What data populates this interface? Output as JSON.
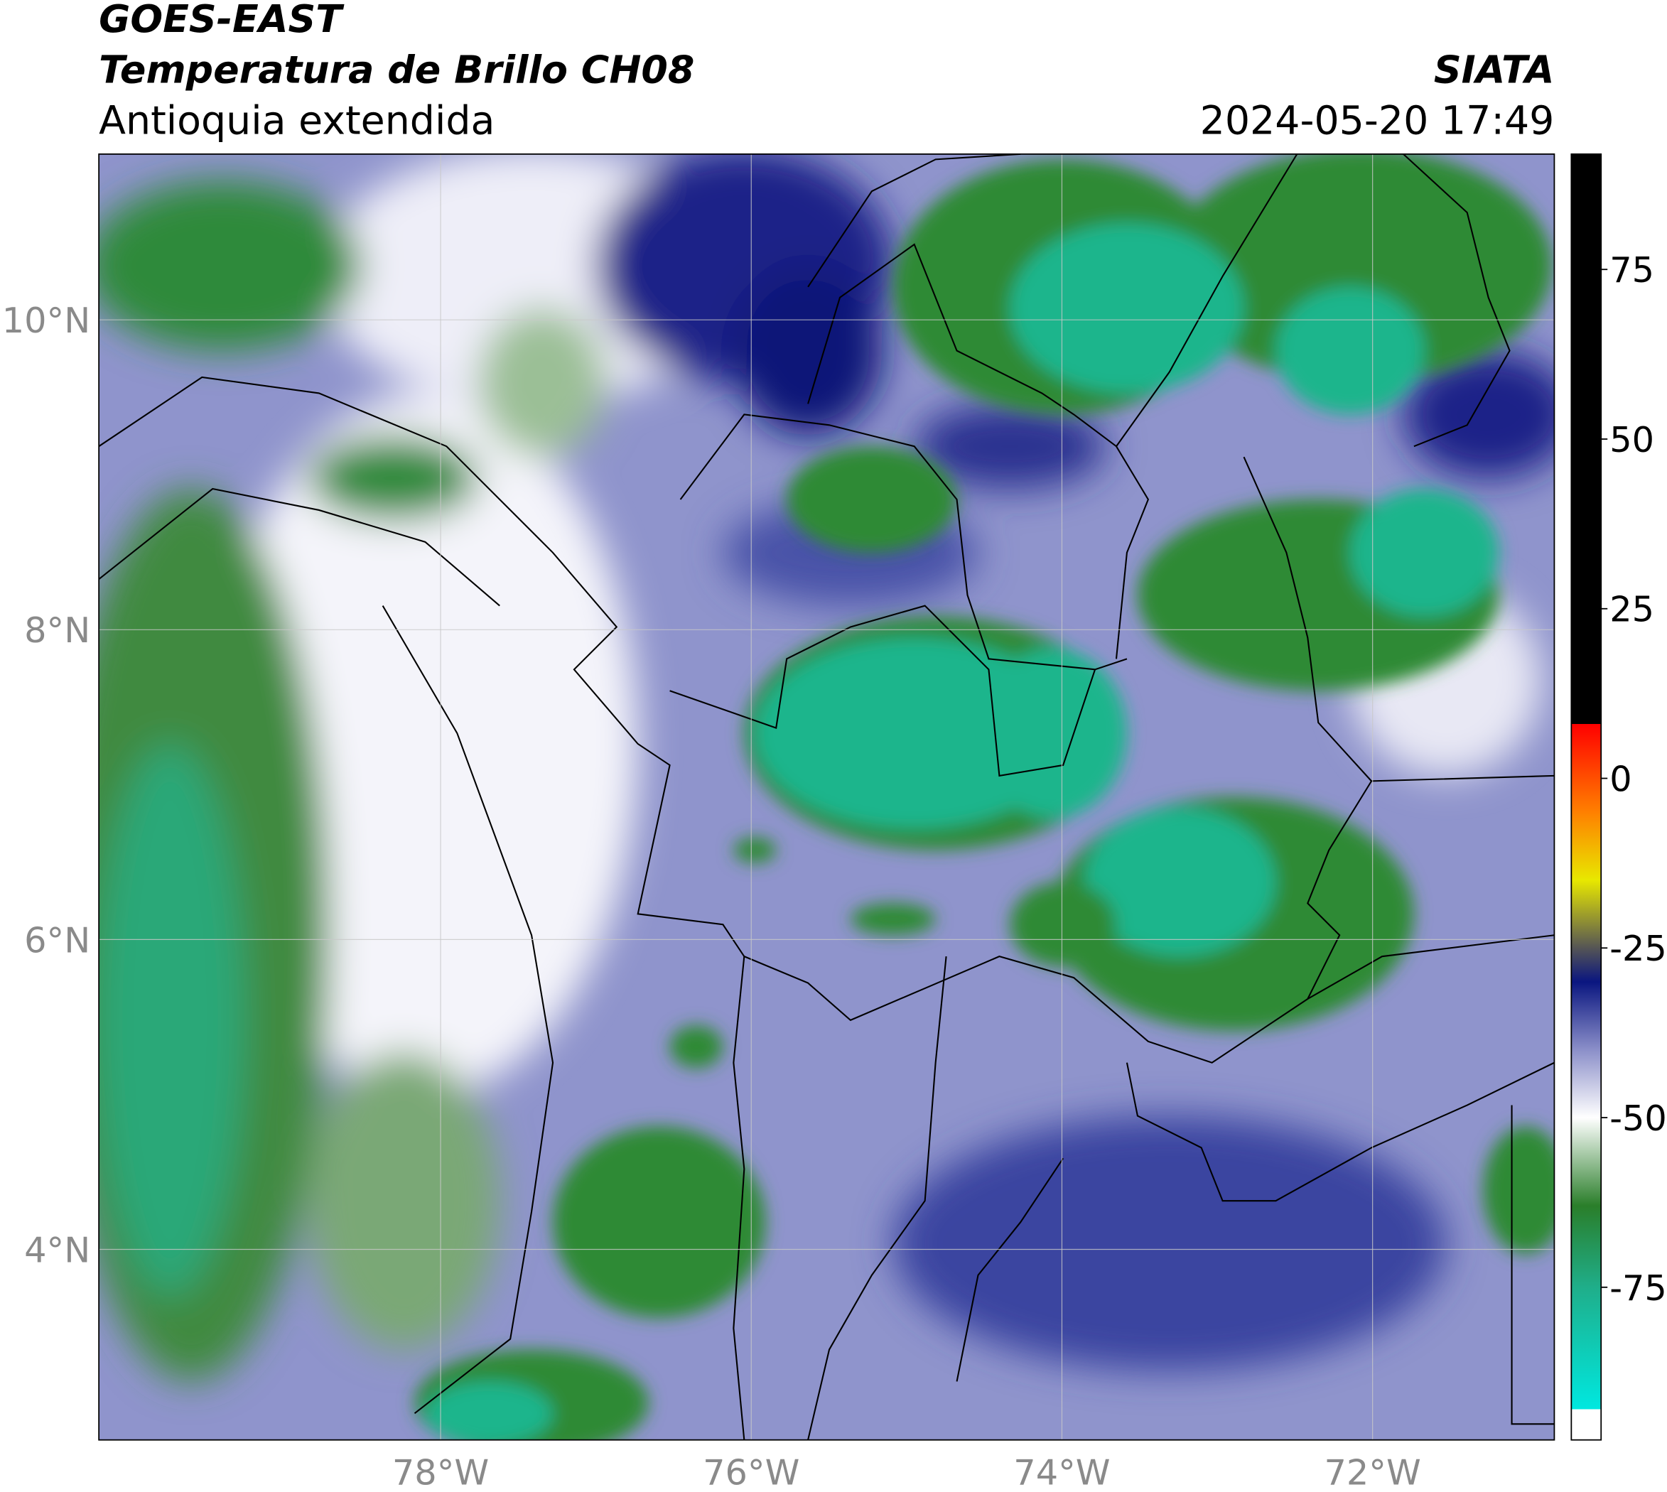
{
  "header": {
    "title": "GOES-EAST",
    "subtitle": "Temperatura de Brillo CH08",
    "region": "Antioquia extendida",
    "source": "SIATA",
    "datetime": "2024-05-20 17:49"
  },
  "chart_data": {
    "type": "map",
    "xlim": [
      -80.2,
      -70.83
    ],
    "ylim": [
      2.77,
      11.07
    ],
    "xticks": [
      {
        "value": -78,
        "label": "78°W"
      },
      {
        "value": -76,
        "label": "76°W"
      },
      {
        "value": -74,
        "label": "74°W"
      },
      {
        "value": -72,
        "label": "72°W"
      }
    ],
    "yticks": [
      {
        "value": 10,
        "label": "10°N"
      },
      {
        "value": 8,
        "label": "8°N"
      },
      {
        "value": 6,
        "label": "6°N"
      },
      {
        "value": 4,
        "label": "4°N"
      }
    ],
    "grid": true,
    "colorbar": {
      "lim": [
        -97.5,
        92
      ],
      "ticks": [
        75,
        50,
        25,
        0,
        -25,
        -50,
        -75
      ],
      "stops": [
        {
          "value": -97.5,
          "color": "#ffffff"
        },
        {
          "value": -93,
          "color": "#ffffff"
        },
        {
          "value": -93,
          "color": "#00e8e0"
        },
        {
          "value": -75,
          "color": "#1fae8a"
        },
        {
          "value": -63,
          "color": "#2a7e2a"
        },
        {
          "value": -50,
          "color": "#ffffff"
        },
        {
          "value": -40,
          "color": "#8b8fc9"
        },
        {
          "value": -30,
          "color": "#0a1680"
        },
        {
          "value": -25,
          "color": "#555555"
        },
        {
          "value": -15,
          "color": "#e8e800"
        },
        {
          "value": -5,
          "color": "#ff8000"
        },
        {
          "value": 8,
          "color": "#ff0000"
        },
        {
          "value": 8,
          "color": "#000000"
        },
        {
          "value": 92,
          "color": "#000000"
        }
      ]
    }
  }
}
